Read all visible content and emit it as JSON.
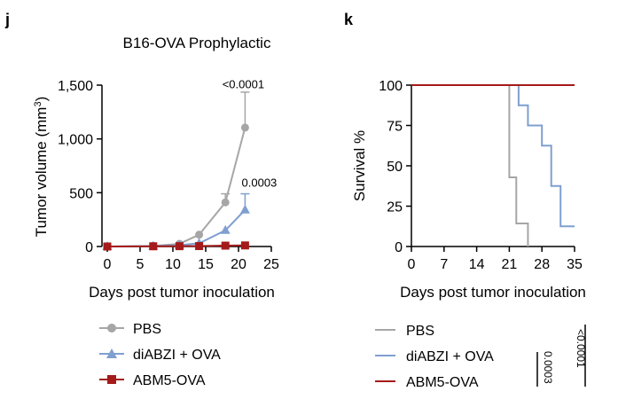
{
  "chart_data": [
    {
      "panel": "j",
      "type": "line",
      "title": "B16-OVA Prophylactic",
      "xlabel": "Days post tumor inoculation",
      "ylabel_main": "Tumor volume (mm",
      "ylabel_sup": "3",
      "ylabel_close": ")",
      "xlim": [
        0,
        25
      ],
      "ylim": [
        0,
        1500
      ],
      "xticks": [
        0,
        5,
        10,
        15,
        20,
        25
      ],
      "yticks": [
        0,
        500,
        1000,
        1500
      ],
      "ytick_labels": [
        "0",
        "500",
        "1,000",
        "1,500"
      ],
      "grid": false,
      "legend_position": "bottom",
      "series": [
        {
          "name": "PBS",
          "color": "#a6a6a6",
          "marker": "circle",
          "x": [
            0,
            7,
            11,
            14,
            18,
            21
          ],
          "y": [
            0,
            5,
            25,
            110,
            410,
            1105
          ],
          "err": [
            0,
            0,
            0,
            0,
            80,
            330
          ]
        },
        {
          "name": "diABZI + OVA",
          "color": "#7f9fcf",
          "marker": "triangle",
          "x": [
            0,
            7,
            11,
            14,
            18,
            21
          ],
          "y": [
            0,
            3,
            12,
            30,
            150,
            340
          ],
          "err": [
            0,
            0,
            0,
            0,
            0,
            150
          ]
        },
        {
          "name": "ABM5-OVA",
          "color": "#a51a1a",
          "marker": "square",
          "x": [
            0,
            7,
            11,
            14,
            18,
            21
          ],
          "y": [
            0,
            2,
            3,
            4,
            8,
            10
          ],
          "err": [
            0,
            0,
            0,
            0,
            0,
            0
          ]
        }
      ],
      "annotations": [
        {
          "text": "<0.0001",
          "x": 21,
          "y": 1430
        },
        {
          "text": "0.0003",
          "x": 21,
          "y": 490
        }
      ]
    },
    {
      "panel": "k",
      "type": "line",
      "subtype": "kaplan-meier",
      "xlabel": "Days post tumor inoculation",
      "ylabel": "Survival %",
      "xlim": [
        0,
        35
      ],
      "ylim": [
        0,
        100
      ],
      "xticks": [
        0,
        7,
        14,
        21,
        28,
        35
      ],
      "yticks": [
        0,
        25,
        50,
        75,
        100
      ],
      "grid": false,
      "legend_position": "bottom",
      "series": [
        {
          "name": "PBS",
          "color": "#a6a6a6",
          "x": [
            0,
            21,
            21,
            22.5,
            22.5,
            25,
            25
          ],
          "y": [
            100,
            100,
            42.86,
            42.86,
            14.29,
            14.29,
            0
          ]
        },
        {
          "name": "diABZI + OVA",
          "color": "#7f9fcf",
          "x": [
            0,
            23,
            23,
            25,
            25,
            28,
            28,
            30,
            30,
            32,
            32,
            35
          ],
          "y": [
            100,
            100,
            87.5,
            87.5,
            75,
            75,
            62.5,
            62.5,
            37.5,
            37.5,
            12.5,
            12.5
          ]
        },
        {
          "name": "ABM5-OVA",
          "color": "#a51a1a",
          "x": [
            0,
            35
          ],
          "y": [
            100,
            100
          ]
        }
      ],
      "stats": [
        {
          "text": "<0.0001"
        },
        {
          "text": "0.0003"
        }
      ]
    }
  ]
}
